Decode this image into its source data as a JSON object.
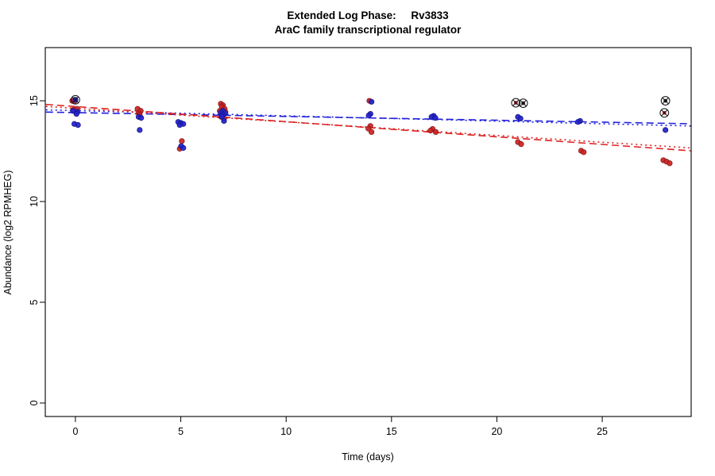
{
  "chart_data": {
    "type": "scatter",
    "title": "Extended Log Phase:     Rv3833",
    "subtitle": "AraC family transcriptional regulator",
    "xlabel": "Time  (days)",
    "ylabel": "Abundance  (log2 RPMHEG)",
    "x_ticks": [
      0,
      5,
      10,
      15,
      20,
      25
    ],
    "y_ticks": [
      0,
      5,
      10,
      15
    ],
    "xlim": [
      -1.43,
      29.22
    ],
    "ylim": [
      -0.67,
      17.64
    ],
    "grid": false,
    "legend": "none",
    "colors": {
      "red_series": "#cc2222",
      "blue_series": "#2222cc",
      "outlier_ring": "#111111"
    },
    "series": [
      {
        "name": "replicate-red",
        "color": "#cc2222",
        "marker": "circle",
        "points": [
          [
            -0.15,
            15.0
          ],
          [
            -0.05,
            14.97
          ],
          [
            0.08,
            14.6
          ],
          [
            -0.1,
            14.55
          ],
          [
            0.02,
            14.45
          ],
          [
            2.95,
            14.6
          ],
          [
            3.1,
            14.5
          ],
          [
            3.0,
            14.38
          ],
          [
            3.05,
            14.3
          ],
          [
            5.05,
            13.0
          ],
          [
            4.95,
            12.62
          ],
          [
            6.9,
            14.85
          ],
          [
            7.0,
            14.78
          ],
          [
            6.95,
            14.7
          ],
          [
            7.08,
            14.6
          ],
          [
            6.85,
            14.5
          ],
          [
            7.12,
            14.45
          ],
          [
            7.0,
            14.3
          ],
          [
            6.92,
            14.2
          ],
          [
            7.05,
            14.12
          ],
          [
            13.95,
            15.0
          ],
          [
            14.0,
            13.75
          ],
          [
            13.9,
            13.62
          ],
          [
            14.05,
            13.45
          ],
          [
            16.95,
            13.6
          ],
          [
            16.85,
            13.52
          ],
          [
            17.1,
            13.45
          ],
          [
            21.0,
            12.95
          ],
          [
            21.15,
            12.85
          ],
          [
            24.0,
            12.52
          ],
          [
            24.12,
            12.45
          ],
          [
            27.9,
            12.05
          ],
          [
            28.05,
            11.98
          ],
          [
            28.2,
            11.9
          ]
        ]
      },
      {
        "name": "replicate-blue",
        "color": "#2222cc",
        "marker": "circle",
        "points": [
          [
            0.0,
            15.05
          ],
          [
            -0.12,
            14.5
          ],
          [
            0.1,
            14.45
          ],
          [
            0.05,
            14.35
          ],
          [
            -0.05,
            13.85
          ],
          [
            0.12,
            13.8
          ],
          [
            3.0,
            14.2
          ],
          [
            3.12,
            14.15
          ],
          [
            3.05,
            13.55
          ],
          [
            4.88,
            13.95
          ],
          [
            5.0,
            13.9
          ],
          [
            5.12,
            13.85
          ],
          [
            4.95,
            13.8
          ],
          [
            5.02,
            12.75
          ],
          [
            5.12,
            12.66
          ],
          [
            7.0,
            14.5
          ],
          [
            6.9,
            14.42
          ],
          [
            7.1,
            14.38
          ],
          [
            7.0,
            14.3
          ],
          [
            6.95,
            14.22
          ],
          [
            7.05,
            14.0
          ],
          [
            14.05,
            14.95
          ],
          [
            14.0,
            14.35
          ],
          [
            13.92,
            14.27
          ],
          [
            17.0,
            14.25
          ],
          [
            16.9,
            14.2
          ],
          [
            17.08,
            14.15
          ],
          [
            21.0,
            14.2
          ],
          [
            21.12,
            14.12
          ],
          [
            23.95,
            14.0
          ],
          [
            23.85,
            13.95
          ],
          [
            28.0,
            13.55
          ]
        ]
      }
    ],
    "trend_lines": [
      {
        "series": "replicate-blue",
        "color": "#2222dd",
        "style": "dotted",
        "x1": -1.4,
        "y1": 14.55,
        "x2": 29.2,
        "y2": 13.75
      },
      {
        "series": "replicate-blue",
        "color": "#2222dd",
        "style": "dashed",
        "x1": -1.4,
        "y1": 14.44,
        "x2": 29.2,
        "y2": 13.86
      },
      {
        "series": "replicate-red",
        "color": "#dd2222",
        "style": "dashed",
        "x1": -1.4,
        "y1": 14.82,
        "x2": 29.2,
        "y2": 12.52
      },
      {
        "series": "replicate-red",
        "color": "#dd2222",
        "style": "dotted",
        "x1": -1.4,
        "y1": 14.72,
        "x2": 29.2,
        "y2": 12.66
      }
    ],
    "outliers": [
      {
        "x": 0.0,
        "y": 15.05,
        "center": "#2222cc"
      },
      {
        "x": 20.9,
        "y": 14.9,
        "center": "#cc2222"
      },
      {
        "x": 21.25,
        "y": 14.88,
        "center": "#222222"
      },
      {
        "x": 28.0,
        "y": 15.0,
        "center": "#222222"
      },
      {
        "x": 27.95,
        "y": 14.4,
        "center": "#cc2222"
      }
    ]
  }
}
